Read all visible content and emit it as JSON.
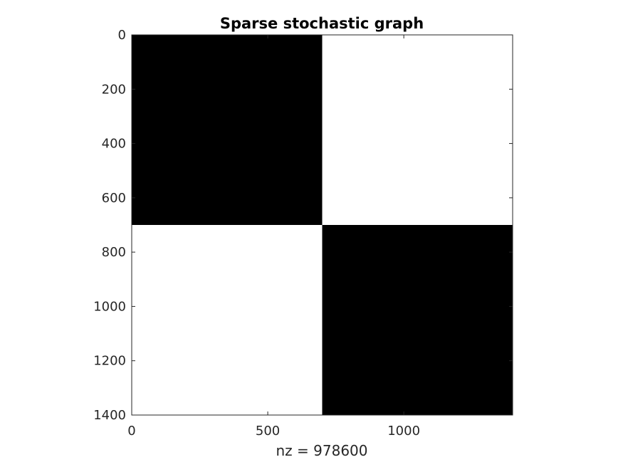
{
  "chart_data": {
    "type": "heatmap",
    "title": "Sparse stochastic graph",
    "xlabel": "nz = 978600",
    "ylabel": "",
    "xlim": [
      0,
      1400
    ],
    "ylim": [
      0,
      1400
    ],
    "y_reversed": true,
    "grid": false,
    "xticks": [
      0,
      500,
      1000
    ],
    "yticks": [
      0,
      200,
      400,
      600,
      800,
      1000,
      1200,
      1400
    ],
    "xtick_labels": [
      "0",
      "500",
      "1000"
    ],
    "ytick_labels": [
      "0",
      "200",
      "400",
      "600",
      "800",
      "1000",
      "1200",
      "1400"
    ],
    "blocks": [
      {
        "col_start": 0,
        "col_end": 700,
        "row_start": 0,
        "row_end": 700
      },
      {
        "col_start": 700,
        "col_end": 1400,
        "row_start": 700,
        "row_end": 1400
      }
    ],
    "mark_color": "#000000"
  }
}
